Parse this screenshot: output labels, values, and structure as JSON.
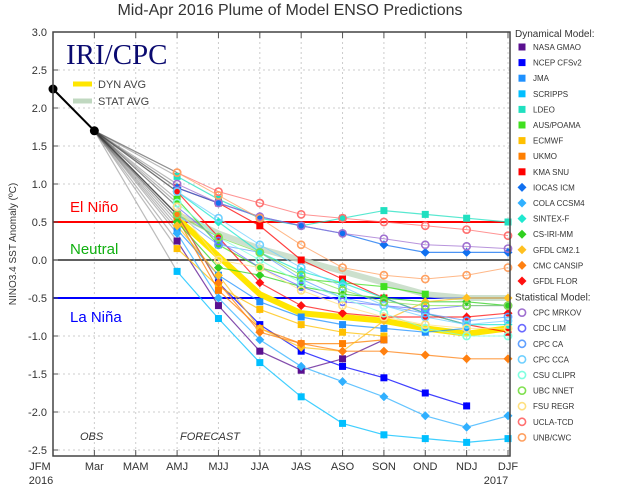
{
  "chart_data": {
    "type": "line",
    "title": "Mid-Apr 2016 Plume of Model ENSO Predictions",
    "ylabel": "NINO3.4 SST Anomaly (ºC)",
    "xlabel": "",
    "categories": [
      "JFM",
      "Mar",
      "MAM",
      "AMJ",
      "MJJ",
      "JJA",
      "JAS",
      "ASO",
      "SON",
      "OND",
      "NDJ",
      "DJF"
    ],
    "year_labels": [
      {
        "at": "JFM",
        "text": "2016"
      },
      {
        "at": "DJF",
        "text": "2017"
      }
    ],
    "ylim": [
      -2.5,
      3.0
    ],
    "yticks": [
      3.0,
      2.5,
      2.0,
      1.5,
      1.0,
      0.5,
      0.0,
      -0.5,
      -1.0,
      -1.5,
      -2.0,
      -2.5
    ],
    "grid": true,
    "watermark": "IRI/CPC",
    "annotations": {
      "obs": "OBS",
      "forecast": "FORECAST"
    },
    "thresholds": [
      {
        "value": 0.5,
        "label": "El Niño",
        "color": "#ff0000"
      },
      {
        "value": 0.0,
        "label": "Neutral",
        "color": "#000000",
        "label_color": "#10b010"
      },
      {
        "value": -0.5,
        "label": "La Niña",
        "color": "#0000ff"
      }
    ],
    "observed": {
      "x": [
        "JFM",
        "Mar"
      ],
      "values": [
        2.25,
        1.7
      ],
      "color": "#000000"
    },
    "forecast_x": [
      "AMJ",
      "MJJ",
      "JJA",
      "JAS",
      "ASO",
      "SON",
      "OND",
      "NDJ",
      "DJF"
    ],
    "averages": [
      {
        "name": "DYN AVG",
        "color": "#ffe600",
        "values": [
          0.55,
          0.05,
          -0.45,
          -0.7,
          -0.75,
          -0.8,
          -0.9,
          -0.97,
          -0.9
        ]
      },
      {
        "name": "STAT AVG",
        "color": "#c0d8c0",
        "values": [
          0.6,
          0.35,
          0.15,
          0.0,
          -0.15,
          -0.3,
          -0.45,
          -0.5,
          -0.5
        ]
      }
    ],
    "legend_placement": "right",
    "dynamical_title": "Dynamical Model:",
    "statistical_title": "Statistical Model:",
    "dynamical": [
      {
        "name": "NASA GMAO",
        "color": "#5a1090",
        "marker": "square",
        "values": [
          0.25,
          -0.6,
          -1.2,
          -1.45,
          -1.3,
          -1.05,
          null,
          null,
          null
        ]
      },
      {
        "name": "NCEP CFSv2",
        "color": "#0000ff",
        "marker": "square",
        "values": [
          0.6,
          -0.3,
          -0.85,
          -1.2,
          -1.4,
          -1.55,
          -1.75,
          -1.92,
          null
        ]
      },
      {
        "name": "JMA",
        "color": "#1e90ff",
        "marker": "square",
        "values": [
          0.4,
          -0.2,
          -0.55,
          -0.75,
          -0.85,
          -0.9,
          -0.95,
          -0.9,
          null
        ]
      },
      {
        "name": "SCRIPPS",
        "color": "#00bfff",
        "marker": "square",
        "values": [
          -0.15,
          -0.77,
          -1.35,
          -1.8,
          -2.15,
          -2.3,
          -2.35,
          -2.4,
          -2.35
        ]
      },
      {
        "name": "LDEO",
        "color": "#20e0c0",
        "marker": "square",
        "values": [
          1.1,
          0.8,
          0.55,
          0.45,
          0.55,
          0.65,
          0.6,
          0.55,
          0.5
        ]
      },
      {
        "name": "AUS/POAMA",
        "color": "#40e020",
        "marker": "square",
        "values": [
          0.8,
          0.2,
          -0.1,
          -0.25,
          -0.3,
          -0.35,
          -0.45,
          null,
          null
        ]
      },
      {
        "name": "ECMWF",
        "color": "#ffc000",
        "marker": "square",
        "values": [
          0.15,
          -0.35,
          -0.65,
          -0.85,
          -0.95,
          -1.0,
          null,
          null,
          null
        ]
      },
      {
        "name": "UKMO",
        "color": "#ff7f00",
        "marker": "square",
        "values": [
          0.55,
          -0.4,
          -0.9,
          -1.1,
          -1.1,
          -1.05,
          null,
          null,
          null
        ]
      },
      {
        "name": "KMA SNU",
        "color": "#ff0000",
        "marker": "square",
        "values": [
          0.95,
          0.75,
          0.45,
          0.0,
          -0.25,
          -0.5,
          -0.7,
          -0.85,
          -0.95
        ]
      },
      {
        "name": "IOCAS ICM",
        "color": "#1070f0",
        "marker": "diamond",
        "values": [
          0.95,
          0.75,
          0.57,
          0.45,
          0.35,
          0.2,
          0.1,
          0.1,
          0.1
        ]
      },
      {
        "name": "COLA CCSM4",
        "color": "#30b0ff",
        "marker": "diamond",
        "values": [
          0.35,
          -0.5,
          -1.05,
          -1.4,
          -1.6,
          -1.8,
          -2.05,
          -2.2,
          -2.05
        ]
      },
      {
        "name": "SINTEX-F",
        "color": "#20e8d0",
        "marker": "diamond",
        "values": [
          0.9,
          0.5,
          0.1,
          -0.15,
          -0.3,
          -0.5,
          -0.7,
          -0.85,
          -0.85
        ]
      },
      {
        "name": "CS-IRI-MM",
        "color": "#30d020",
        "marker": "diamond",
        "values": [
          0.5,
          -0.1,
          -0.2,
          -0.35,
          -0.45,
          -0.5,
          -0.55,
          -0.55,
          -0.6
        ]
      },
      {
        "name": "GFDL CM2.1",
        "color": "#ffc020",
        "marker": "diamond",
        "values": [
          0.45,
          -0.2,
          -0.9,
          -1.15,
          -1.2,
          -0.8,
          -0.55,
          -0.5,
          -0.5
        ]
      },
      {
        "name": "CMC CANSIP",
        "color": "#ff8010",
        "marker": "diamond",
        "values": [
          0.6,
          -0.3,
          -0.95,
          -1.1,
          -1.2,
          -1.2,
          -1.25,
          -1.3,
          -1.3
        ]
      },
      {
        "name": "GFDL FLOR",
        "color": "#ff1010",
        "marker": "diamond",
        "values": [
          0.9,
          0.3,
          -0.3,
          -0.6,
          -0.7,
          -0.75,
          -0.75,
          -0.75,
          -0.7
        ]
      }
    ],
    "statistical": [
      {
        "name": "CPC MRKOV",
        "color": "#a070d0",
        "marker": "circle",
        "values": [
          1.0,
          0.75,
          0.57,
          0.45,
          0.35,
          0.28,
          0.2,
          0.18,
          0.15
        ]
      },
      {
        "name": "CDC LIM",
        "color": "#6a6aff",
        "marker": "circle",
        "values": [
          0.7,
          0.25,
          -0.1,
          -0.35,
          -0.55,
          -0.6,
          -0.65,
          -0.6,
          -0.6
        ]
      },
      {
        "name": "CPC CA",
        "color": "#60a0ff",
        "marker": "circle",
        "values": [
          0.6,
          0.2,
          0.1,
          -0.25,
          -0.5,
          -0.6,
          -0.7,
          -0.8,
          -0.75
        ]
      },
      {
        "name": "CPC CCA",
        "color": "#70d0ff",
        "marker": "circle",
        "values": [
          0.9,
          0.55,
          0.2,
          -0.1,
          -0.35,
          -0.6,
          -0.75,
          -0.85,
          -0.8
        ]
      },
      {
        "name": "CSU CLIPR",
        "color": "#80ffe0",
        "marker": "circle",
        "values": [
          0.75,
          0.3,
          0.0,
          -0.3,
          -0.5,
          -0.7,
          -0.9,
          -1.0,
          -1.0
        ]
      },
      {
        "name": "UBC NNET",
        "color": "#80e050",
        "marker": "circle",
        "values": [
          0.6,
          0.3,
          0.1,
          -0.2,
          -0.4,
          -0.55,
          -0.6,
          -0.6,
          -0.6
        ]
      },
      {
        "name": "FSU REGR",
        "color": "#ffe080",
        "marker": "circle",
        "values": [
          0.7,
          0.0,
          -0.1,
          -0.4,
          -0.6,
          -0.75,
          -0.85,
          -0.9,
          -0.9
        ]
      },
      {
        "name": "UCLA-TCD",
        "color": "#ff7070",
        "marker": "circle",
        "values": [
          1.15,
          0.9,
          0.75,
          0.6,
          0.55,
          0.5,
          0.45,
          0.4,
          0.32
        ]
      },
      {
        "name": "UNB/CWC",
        "color": "#ffa060",
        "marker": "circle",
        "values": [
          1.15,
          0.85,
          0.55,
          0.2,
          -0.1,
          -0.2,
          -0.25,
          -0.2,
          -0.1
        ]
      }
    ]
  }
}
